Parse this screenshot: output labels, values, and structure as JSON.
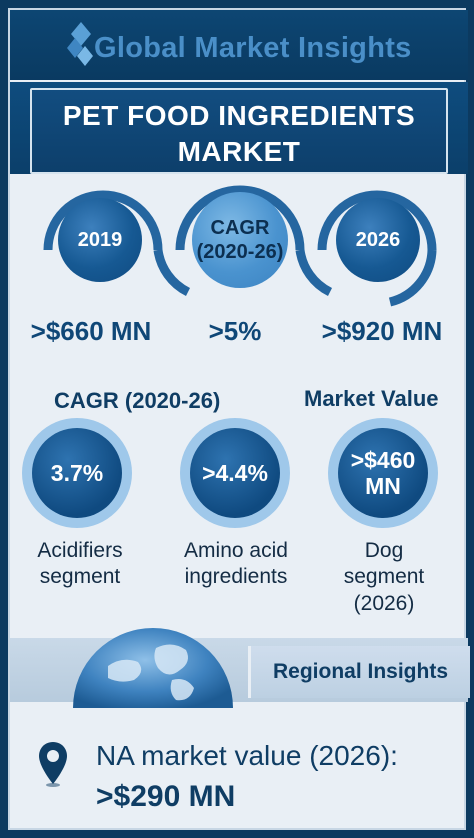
{
  "brand": {
    "logo_text": "Global Market Insights"
  },
  "title": {
    "line1": "PET FOOD INGREDIENTS",
    "line2": "MARKET"
  },
  "timeline": {
    "start": {
      "year": "2019",
      "value": ">$660 MN"
    },
    "cagr": {
      "label_line1": "CAGR",
      "label_line2": "(2020-26)",
      "value": ">5%"
    },
    "end": {
      "year": "2026",
      "value": ">$920 MN"
    }
  },
  "segments": {
    "cagr_heading": "CAGR (2020-26)",
    "market_value_heading": "Market Value",
    "items": [
      {
        "value": "3.7%",
        "label_line1": "Acidifiers",
        "label_line2": "segment",
        "label_line3": ""
      },
      {
        "value": ">4.4%",
        "label_line1": "Amino acid",
        "label_line2": "ingredients",
        "label_line3": ""
      },
      {
        "value_line1": ">$460",
        "value_line2": "MN",
        "label_line1": "Dog",
        "label_line2": "segment",
        "label_line3": "(2026)"
      }
    ]
  },
  "regional": {
    "heading": "Regional Insights",
    "line1": "NA market value (2026):",
    "line2": ">$290 MN"
  },
  "colors": {
    "navy": "#0c3a60",
    "accent_blue": "#2566a0",
    "light_blue": "#9fc8ea",
    "text_dark": "#0f3d64"
  }
}
